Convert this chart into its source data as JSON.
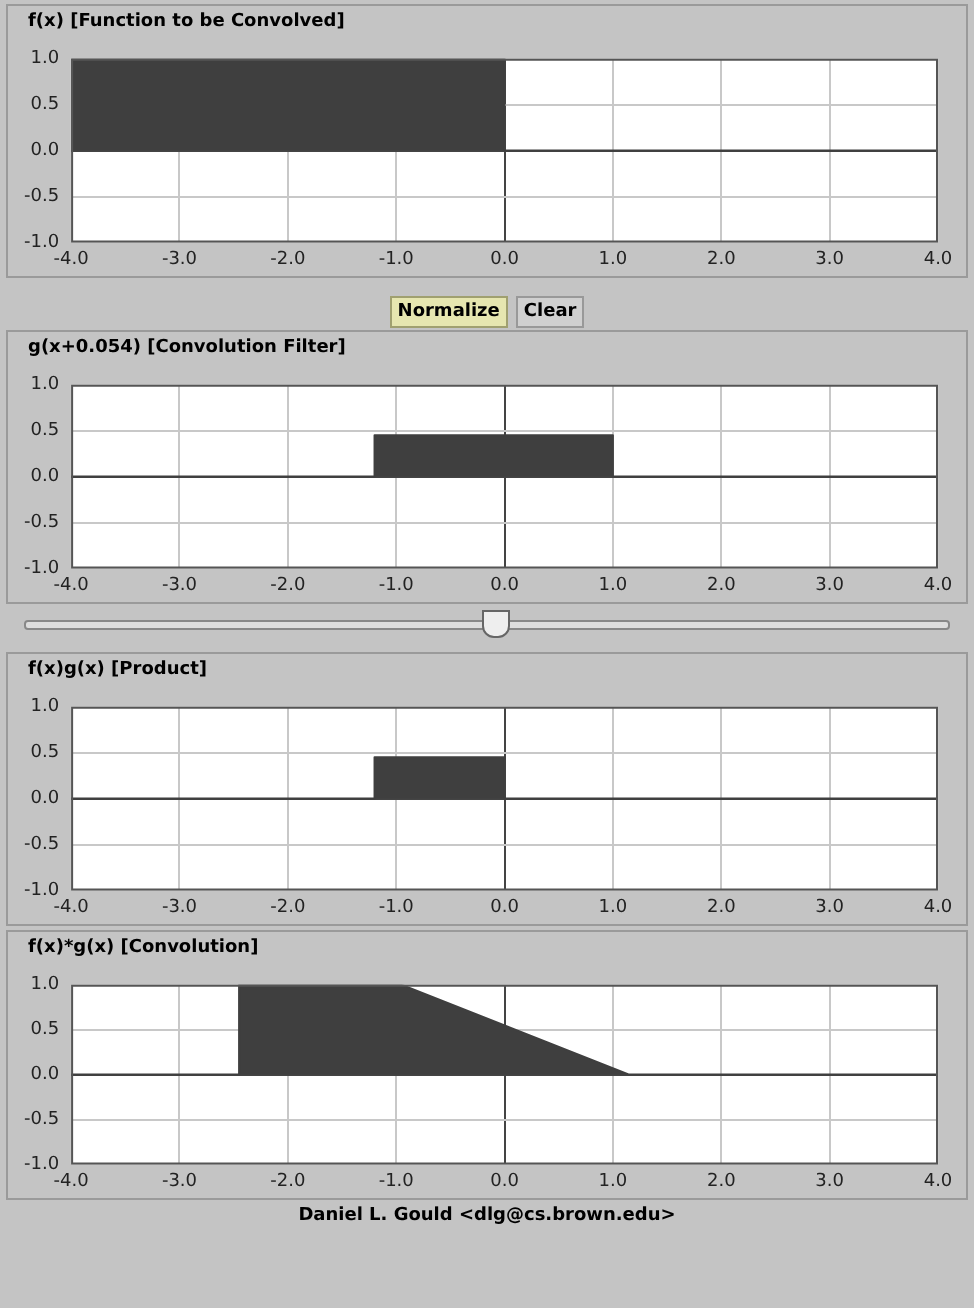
{
  "chart_data": [
    {
      "type": "area",
      "title": "f(x) [Function to be Convolved]",
      "x": [
        -4,
        0,
        0,
        4
      ],
      "series": [
        {
          "color": "#3f3f3f",
          "values": [
            1,
            1,
            0,
            0
          ]
        }
      ],
      "xlim": [
        -4,
        4
      ],
      "xticks": [
        {
          "value": -4,
          "label": "-4.0"
        },
        {
          "value": -3,
          "label": "-3.0"
        },
        {
          "value": -2,
          "label": "-2.0"
        },
        {
          "value": -1,
          "label": "-1.0"
        },
        {
          "value": 0,
          "label": "0.0"
        },
        {
          "value": 1,
          "label": "1.0"
        },
        {
          "value": 2,
          "label": "2.0"
        },
        {
          "value": 3,
          "label": "3.0"
        },
        {
          "value": 4,
          "label": "4.0"
        }
      ],
      "ylim": [
        -1,
        1
      ],
      "yticks": [
        {
          "value": 1,
          "label": "1.0"
        },
        {
          "value": 0.5,
          "label": "0.5"
        },
        {
          "value": 0,
          "label": "0.0"
        },
        {
          "value": -0.5,
          "label": "-0.5"
        },
        {
          "value": -1,
          "label": "-1.0"
        }
      ],
      "grid": true,
      "annotations": [
        "Normalize",
        "Clear"
      ]
    },
    {
      "type": "area",
      "title": "g(x+0.054) [Convolution Filter]",
      "x": [
        -4,
        -1.2,
        -1.2,
        1,
        1,
        4
      ],
      "series": [
        {
          "color": "#3f3f3f",
          "values": [
            0,
            0,
            0.45,
            0.45,
            0,
            0
          ]
        }
      ],
      "xlim": [
        -4,
        4
      ],
      "xticks": [
        {
          "value": -4,
          "label": "-4.0"
        },
        {
          "value": -3,
          "label": "-3.0"
        },
        {
          "value": -2,
          "label": "-2.0"
        },
        {
          "value": -1,
          "label": "-1.0"
        },
        {
          "value": 0,
          "label": "0.0"
        },
        {
          "value": 1,
          "label": "1.0"
        },
        {
          "value": 2,
          "label": "2.0"
        },
        {
          "value": 3,
          "label": "3.0"
        },
        {
          "value": 4,
          "label": "4.0"
        }
      ],
      "ylim": [
        -1,
        1
      ],
      "yticks": [
        {
          "value": 1,
          "label": "1.0"
        },
        {
          "value": 0.5,
          "label": "0.5"
        },
        {
          "value": 0,
          "label": "0.0"
        },
        {
          "value": -0.5,
          "label": "-0.5"
        },
        {
          "value": -1,
          "label": "-1.0"
        }
      ],
      "grid": true
    },
    {
      "type": "area",
      "title": "f(x)g(x) [Product]",
      "x": [
        -4,
        -1.2,
        -1.2,
        0,
        0,
        4
      ],
      "series": [
        {
          "color": "#3f3f3f",
          "values": [
            0,
            0,
            0.45,
            0.45,
            0,
            0
          ]
        }
      ],
      "xlim": [
        -4,
        4
      ],
      "xticks": [
        {
          "value": -4,
          "label": "-4.0"
        },
        {
          "value": -3,
          "label": "-3.0"
        },
        {
          "value": -2,
          "label": "-2.0"
        },
        {
          "value": -1,
          "label": "-1.0"
        },
        {
          "value": 0,
          "label": "0.0"
        },
        {
          "value": 1,
          "label": "1.0"
        },
        {
          "value": 2,
          "label": "2.0"
        },
        {
          "value": 3,
          "label": "3.0"
        },
        {
          "value": 4,
          "label": "4.0"
        }
      ],
      "ylim": [
        -1,
        1
      ],
      "yticks": [
        {
          "value": 1,
          "label": "1.0"
        },
        {
          "value": 0.5,
          "label": "0.5"
        },
        {
          "value": 0,
          "label": "0.0"
        },
        {
          "value": -0.5,
          "label": "-0.5"
        },
        {
          "value": -1,
          "label": "-1.0"
        }
      ],
      "grid": true
    },
    {
      "type": "area",
      "title": "f(x)*g(x) [Convolution]",
      "x": [
        -4,
        -2.45,
        -2.45,
        -0.95,
        1.15,
        4
      ],
      "series": [
        {
          "color": "#3f3f3f",
          "values": [
            0,
            0,
            1,
            1,
            0,
            0
          ]
        }
      ],
      "xlim": [
        -4,
        4
      ],
      "xticks": [
        {
          "value": -4,
          "label": "-4.0"
        },
        {
          "value": -3,
          "label": "-3.0"
        },
        {
          "value": -2,
          "label": "-2.0"
        },
        {
          "value": -1,
          "label": "-1.0"
        },
        {
          "value": 0,
          "label": "0.0"
        },
        {
          "value": 1,
          "label": "1.0"
        },
        {
          "value": 2,
          "label": "2.0"
        },
        {
          "value": 3,
          "label": "3.0"
        },
        {
          "value": 4,
          "label": "4.0"
        }
      ],
      "ylim": [
        -1,
        1
      ],
      "yticks": [
        {
          "value": 1,
          "label": "1.0"
        },
        {
          "value": 0.5,
          "label": "0.5"
        },
        {
          "value": 0,
          "label": "0.0"
        },
        {
          "value": -0.5,
          "label": "-0.5"
        },
        {
          "value": -1,
          "label": "-1.0"
        }
      ],
      "grid": true,
      "annotations": [
        "Daniel L. Gould <dlg@cs.brown.edu>"
      ]
    }
  ]
}
